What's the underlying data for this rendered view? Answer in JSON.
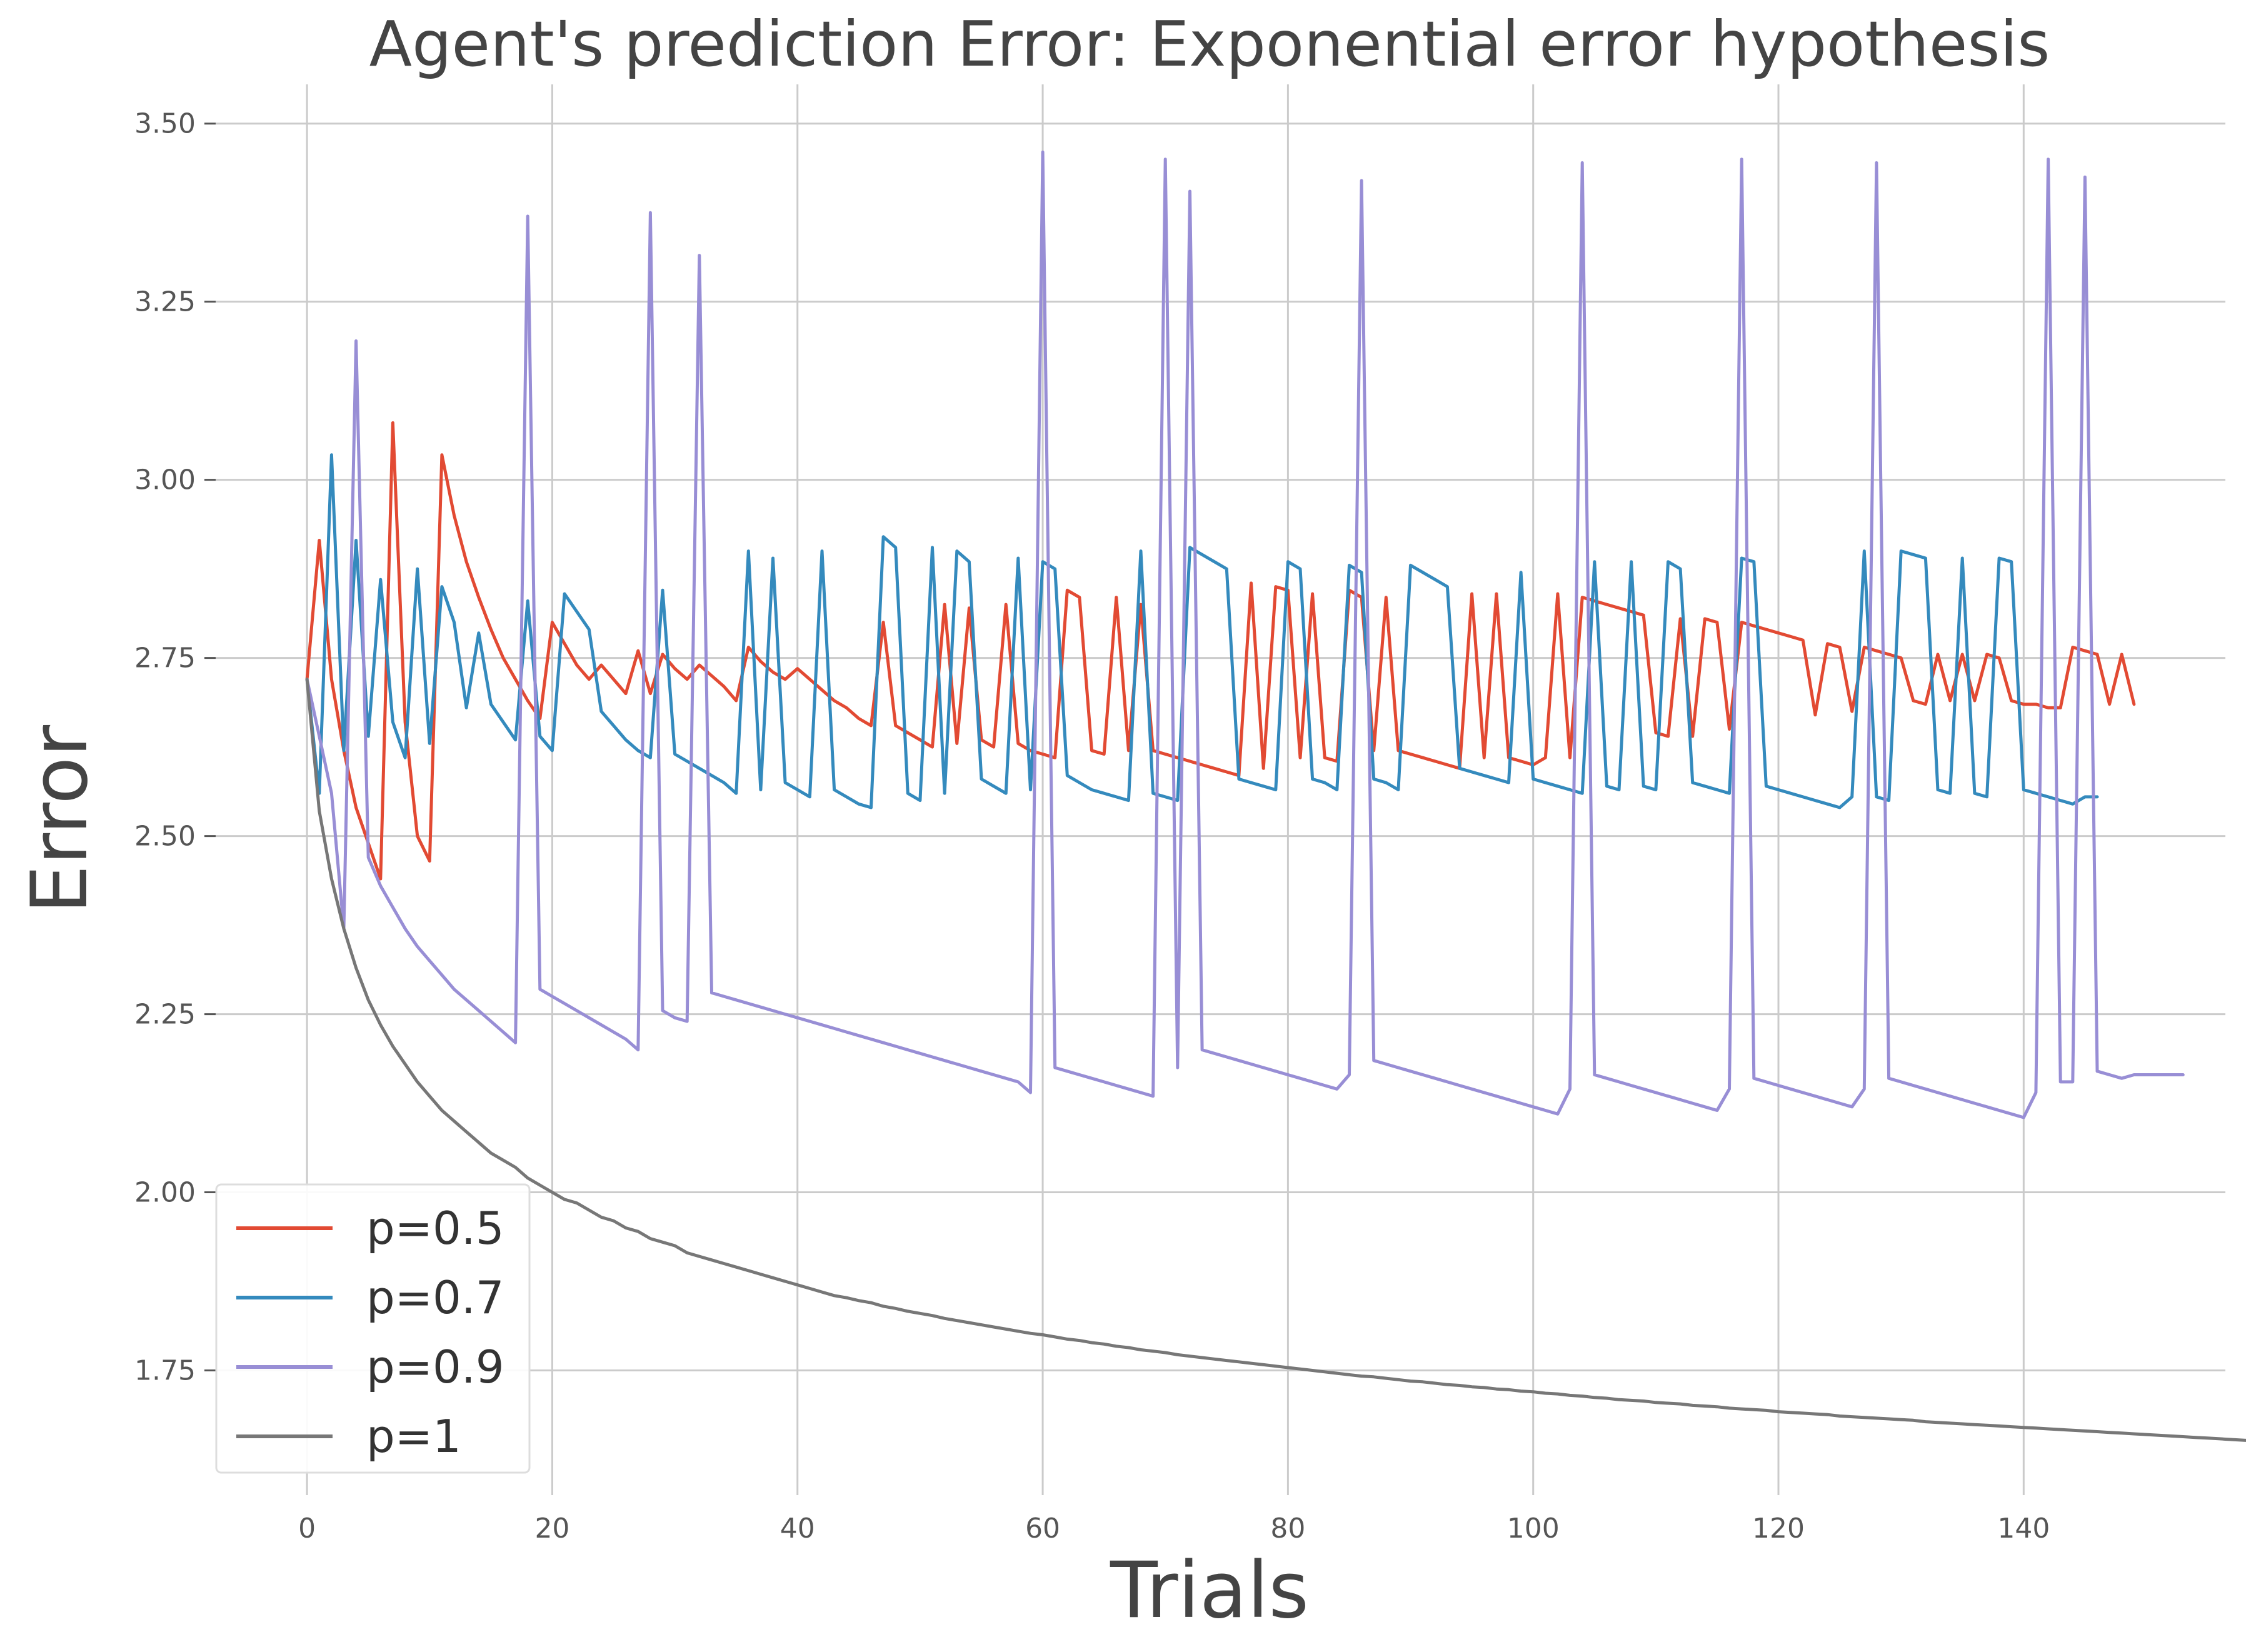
{
  "chart_data": {
    "type": "line",
    "title": "Agent's prediction Error: Exponential error hypothesis",
    "xlabel": "Trials",
    "ylabel": "Error",
    "xlim": [
      -7.45,
      156.45
    ],
    "ylim": [
      1.575,
      3.555
    ],
    "xticks": [
      0,
      20,
      40,
      60,
      80,
      100,
      120,
      140
    ],
    "xtick_labels": [
      "0",
      "20",
      "40",
      "60",
      "80",
      "100",
      "120",
      "140"
    ],
    "yticks": [
      1.75,
      2.0,
      2.25,
      2.5,
      2.75,
      3.0,
      3.25,
      3.5
    ],
    "ytick_labels": [
      "1.75",
      "2.00",
      "2.25",
      "2.50",
      "2.75",
      "3.00",
      "3.25",
      "3.50"
    ],
    "grid": true,
    "legend_position": "lower-left",
    "x_start": 0,
    "x_step": 1,
    "series": [
      {
        "name": "p=0.5",
        "color": "#E24A33",
        "values": [
          2.72,
          2.915,
          2.72,
          2.62,
          2.54,
          2.49,
          2.44,
          3.08,
          2.66,
          2.5,
          2.465,
          3.035,
          2.95,
          2.885,
          2.835,
          2.79,
          2.75,
          2.72,
          2.69,
          2.665,
          2.8,
          2.77,
          2.74,
          2.72,
          2.74,
          2.72,
          2.7,
          2.76,
          2.7,
          2.755,
          2.735,
          2.72,
          2.74,
          2.725,
          2.71,
          2.69,
          2.765,
          2.745,
          2.73,
          2.72,
          2.735,
          2.72,
          2.705,
          2.69,
          2.68,
          2.665,
          2.655,
          2.8,
          2.655,
          2.645,
          2.635,
          2.625,
          2.825,
          2.63,
          2.82,
          2.635,
          2.625,
          2.825,
          2.63,
          2.62,
          2.615,
          2.61,
          2.845,
          2.835,
          2.62,
          2.615,
          2.835,
          2.62,
          2.825,
          2.62,
          2.615,
          2.61,
          2.605,
          2.6,
          2.595,
          2.59,
          2.585,
          2.855,
          2.595,
          2.85,
          2.845,
          2.61,
          2.84,
          2.61,
          2.605,
          2.845,
          2.835,
          2.62,
          2.835,
          2.62,
          2.615,
          2.61,
          2.605,
          2.6,
          2.595,
          2.84,
          2.61,
          2.84,
          2.61,
          2.605,
          2.6,
          2.61,
          2.84,
          2.61,
          2.835,
          2.83,
          2.825,
          2.82,
          2.815,
          2.81,
          2.645,
          2.64,
          2.805,
          2.64,
          2.805,
          2.8,
          2.65,
          2.8,
          2.795,
          2.79,
          2.785,
          2.78,
          2.775,
          2.67,
          2.77,
          2.765,
          2.675,
          2.765,
          2.76,
          2.755,
          2.75,
          2.69,
          2.685,
          2.755,
          2.69,
          2.755,
          2.69,
          2.755,
          2.75,
          2.69,
          2.685,
          2.685,
          2.68,
          2.68,
          2.765,
          2.76,
          2.755,
          2.685,
          2.755,
          2.685
        ]
      },
      {
        "name": "p=0.7",
        "color": "#348ABD",
        "values": [
          2.72,
          2.56,
          3.035,
          2.62,
          2.915,
          2.64,
          2.86,
          2.66,
          2.61,
          2.875,
          2.63,
          2.85,
          2.8,
          2.68,
          2.785,
          2.685,
          2.66,
          2.635,
          2.83,
          2.64,
          2.62,
          2.84,
          2.815,
          2.79,
          2.675,
          2.655,
          2.635,
          2.62,
          2.61,
          2.845,
          2.615,
          2.605,
          2.595,
          2.585,
          2.575,
          2.56,
          2.9,
          2.565,
          2.89,
          2.575,
          2.565,
          2.555,
          2.9,
          2.565,
          2.555,
          2.545,
          2.54,
          2.92,
          2.905,
          2.56,
          2.55,
          2.905,
          2.56,
          2.9,
          2.885,
          2.58,
          2.57,
          2.56,
          2.89,
          2.565,
          2.885,
          2.875,
          2.585,
          2.575,
          2.565,
          2.56,
          2.555,
          2.55,
          2.9,
          2.56,
          2.555,
          2.55,
          2.905,
          2.895,
          2.885,
          2.875,
          2.58,
          2.575,
          2.57,
          2.565,
          2.885,
          2.875,
          2.58,
          2.575,
          2.565,
          2.88,
          2.87,
          2.58,
          2.575,
          2.565,
          2.88,
          2.87,
          2.86,
          2.85,
          2.595,
          2.59,
          2.585,
          2.58,
          2.575,
          2.87,
          2.58,
          2.575,
          2.57,
          2.565,
          2.56,
          2.885,
          2.57,
          2.565,
          2.885,
          2.57,
          2.565,
          2.885,
          2.875,
          2.575,
          2.57,
          2.565,
          2.56,
          2.89,
          2.885,
          2.57,
          2.565,
          2.56,
          2.555,
          2.55,
          2.545,
          2.54,
          2.555,
          2.9,
          2.555,
          2.55,
          2.9,
          2.895,
          2.89,
          2.565,
          2.56,
          2.89,
          2.56,
          2.555,
          2.89,
          2.885,
          2.565,
          2.56,
          2.555,
          2.55,
          2.545,
          2.555,
          2.555
        ]
      },
      {
        "name": "p=0.9",
        "color": "#988ED5",
        "values": [
          2.72,
          2.64,
          2.56,
          2.37,
          3.195,
          2.47,
          2.43,
          2.4,
          2.37,
          2.345,
          2.325,
          2.305,
          2.285,
          2.27,
          2.255,
          2.24,
          2.225,
          2.21,
          3.37,
          2.285,
          2.275,
          2.265,
          2.255,
          2.245,
          2.235,
          2.225,
          2.215,
          2.2,
          3.375,
          2.255,
          2.245,
          2.24,
          3.315,
          2.28,
          2.275,
          2.27,
          2.265,
          2.26,
          2.255,
          2.25,
          2.245,
          2.24,
          2.235,
          2.23,
          2.225,
          2.22,
          2.215,
          2.21,
          2.205,
          2.2,
          2.195,
          2.19,
          2.185,
          2.18,
          2.175,
          2.17,
          2.165,
          2.16,
          2.155,
          2.14,
          3.46,
          2.175,
          2.17,
          2.165,
          2.16,
          2.155,
          2.15,
          2.145,
          2.14,
          2.135,
          3.45,
          2.175,
          3.405,
          2.2,
          2.195,
          2.19,
          2.185,
          2.18,
          2.175,
          2.17,
          2.165,
          2.16,
          2.155,
          2.15,
          2.145,
          2.165,
          3.42,
          2.185,
          2.18,
          2.175,
          2.17,
          2.165,
          2.16,
          2.155,
          2.15,
          2.145,
          2.14,
          2.135,
          2.13,
          2.125,
          2.12,
          2.115,
          2.11,
          2.145,
          3.445,
          2.165,
          2.16,
          2.155,
          2.15,
          2.145,
          2.14,
          2.135,
          2.13,
          2.125,
          2.12,
          2.115,
          2.145,
          3.45,
          2.16,
          2.155,
          2.15,
          2.145,
          2.14,
          2.135,
          2.13,
          2.125,
          2.12,
          2.145,
          3.445,
          2.16,
          2.155,
          2.15,
          2.145,
          2.14,
          2.135,
          2.13,
          2.125,
          2.12,
          2.115,
          2.11,
          2.105,
          2.14,
          3.45,
          2.155,
          2.155,
          3.425,
          2.17,
          2.165,
          2.16,
          2.165,
          2.165,
          2.165,
          2.165,
          2.165
        ]
      },
      {
        "name": "p=1",
        "color": "#777777",
        "values": [
          2.72,
          2.535,
          2.44,
          2.37,
          2.315,
          2.27,
          2.235,
          2.205,
          2.18,
          2.155,
          2.135,
          2.115,
          2.1,
          2.085,
          2.07,
          2.055,
          2.045,
          2.035,
          2.02,
          2.01,
          2.0,
          1.99,
          1.985,
          1.975,
          1.965,
          1.96,
          1.95,
          1.945,
          1.935,
          1.93,
          1.925,
          1.915,
          1.91,
          1.905,
          1.9,
          1.895,
          1.89,
          1.885,
          1.88,
          1.875,
          1.87,
          1.865,
          1.86,
          1.855,
          1.852,
          1.848,
          1.845,
          1.84,
          1.837,
          1.833,
          1.83,
          1.827,
          1.823,
          1.82,
          1.817,
          1.814,
          1.811,
          1.808,
          1.805,
          1.802,
          1.8,
          1.797,
          1.794,
          1.792,
          1.789,
          1.787,
          1.784,
          1.782,
          1.779,
          1.777,
          1.775,
          1.772,
          1.77,
          1.768,
          1.766,
          1.764,
          1.762,
          1.76,
          1.758,
          1.756,
          1.754,
          1.752,
          1.75,
          1.748,
          1.746,
          1.744,
          1.742,
          1.741,
          1.739,
          1.737,
          1.735,
          1.734,
          1.732,
          1.73,
          1.729,
          1.727,
          1.726,
          1.724,
          1.723,
          1.721,
          1.72,
          1.718,
          1.717,
          1.715,
          1.714,
          1.712,
          1.711,
          1.709,
          1.708,
          1.707,
          1.705,
          1.704,
          1.703,
          1.701,
          1.7,
          1.699,
          1.697,
          1.696,
          1.695,
          1.694,
          1.692,
          1.691,
          1.69,
          1.689,
          1.688,
          1.686,
          1.685,
          1.684,
          1.683,
          1.682,
          1.681,
          1.68,
          1.678,
          1.677,
          1.676,
          1.675,
          1.674,
          1.673,
          1.672,
          1.671,
          1.67,
          1.669,
          1.668,
          1.667,
          1.666,
          1.665,
          1.664,
          1.663,
          1.662,
          1.661,
          1.66,
          1.659,
          1.658,
          1.657,
          1.656,
          1.655,
          1.654,
          1.653,
          1.652,
          1.651,
          1.65,
          1.649,
          1.648,
          1.647,
          1.646
        ]
      }
    ]
  }
}
